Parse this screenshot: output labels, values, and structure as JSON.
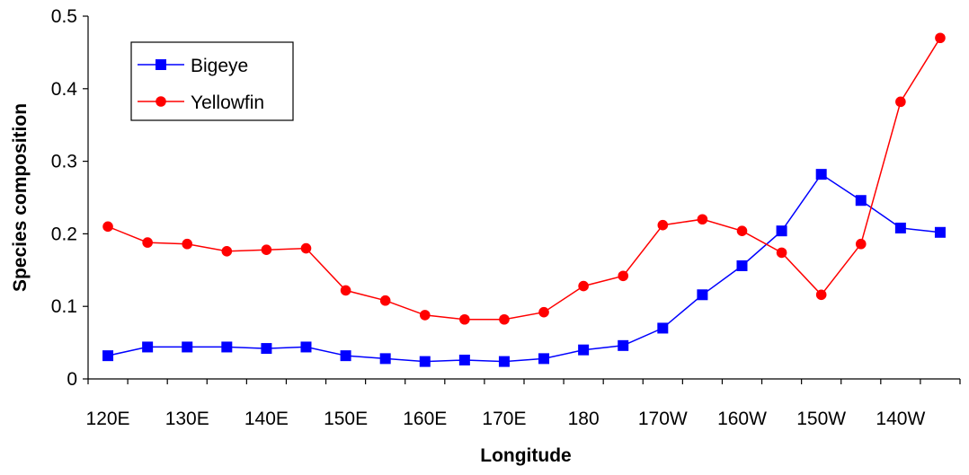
{
  "chart_data": {
    "type": "line",
    "title": "",
    "xlabel": "Longitude",
    "ylabel": "Species composition",
    "x": [
      "120E",
      "125E",
      "130E",
      "135E",
      "140E",
      "145E",
      "150E",
      "155E",
      "160E",
      "165E",
      "170E",
      "175E",
      "180",
      "175W",
      "170W",
      "165W",
      "160W",
      "155W",
      "150W",
      "145W",
      "140W",
      "135W"
    ],
    "x_tick_labels": [
      "120E",
      "130E",
      "140E",
      "150E",
      "160E",
      "170E",
      "180",
      "170W",
      "160W",
      "150W",
      "140W"
    ],
    "ylim": [
      0,
      0.5
    ],
    "y_ticks": [
      "0",
      "0.1",
      "0.2",
      "0.3",
      "0.4",
      "0.5"
    ],
    "grid": false,
    "legend_position": "top-left",
    "series": [
      {
        "name": "Bigeye",
        "color": "#0000ff",
        "marker": "square",
        "values": [
          0.032,
          0.044,
          0.044,
          0.044,
          0.042,
          0.044,
          0.032,
          0.028,
          0.024,
          0.026,
          0.024,
          0.028,
          0.04,
          0.046,
          0.07,
          0.116,
          0.156,
          0.204,
          0.282,
          0.246,
          0.208,
          0.202
        ]
      },
      {
        "name": "Yellowfin",
        "color": "#ff0000",
        "marker": "circle",
        "values": [
          0.21,
          0.188,
          0.186,
          0.176,
          0.178,
          0.18,
          0.122,
          0.108,
          0.088,
          0.082,
          0.082,
          0.092,
          0.128,
          0.142,
          0.212,
          0.22,
          0.204,
          0.174,
          0.116,
          0.186,
          0.382,
          0.47
        ]
      }
    ]
  }
}
